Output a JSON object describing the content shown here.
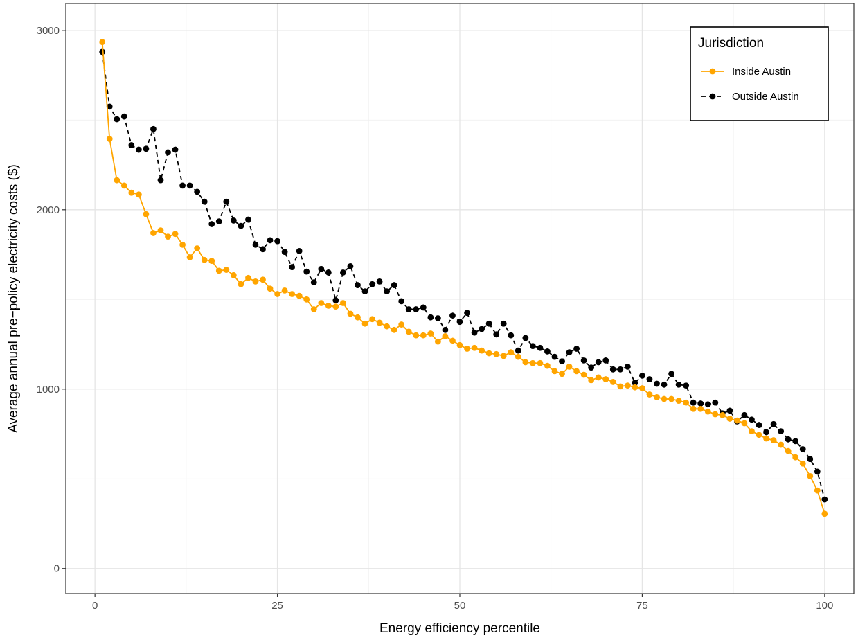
{
  "chart_data": {
    "type": "line",
    "title": "",
    "xlabel": "Energy efficiency percentile",
    "ylabel": "Average annual pre−policy electricity costs ($)",
    "xlim": [
      -4,
      104
    ],
    "ylim": [
      -140,
      3150
    ],
    "x_ticks": [
      0,
      25,
      50,
      75,
      100
    ],
    "x_tick_labels": [
      "0",
      "25",
      "50",
      "75",
      "100"
    ],
    "y_ticks": [
      0,
      1000,
      2000,
      3000
    ],
    "y_tick_labels": [
      "0",
      "1000",
      "2000",
      "3000"
    ],
    "grid": true,
    "legend": {
      "title": "Jurisdiction",
      "position": "top-right"
    },
    "x": [
      1,
      2,
      3,
      4,
      5,
      6,
      7,
      8,
      9,
      10,
      11,
      12,
      13,
      14,
      15,
      16,
      17,
      18,
      19,
      20,
      21,
      22,
      23,
      24,
      25,
      26,
      27,
      28,
      29,
      30,
      31,
      32,
      33,
      34,
      35,
      36,
      37,
      38,
      39,
      40,
      41,
      42,
      43,
      44,
      45,
      46,
      47,
      48,
      49,
      50,
      51,
      52,
      53,
      54,
      55,
      56,
      57,
      58,
      59,
      60,
      61,
      62,
      63,
      64,
      65,
      66,
      67,
      68,
      69,
      70,
      71,
      72,
      73,
      74,
      75,
      76,
      77,
      78,
      79,
      80,
      81,
      82,
      83,
      84,
      85,
      86,
      87,
      88,
      89,
      90,
      91,
      92,
      93,
      94,
      95,
      96,
      97,
      98,
      99,
      100
    ],
    "series": [
      {
        "name": "Inside Austin",
        "color": "#FFA500",
        "line_style": "solid",
        "values": [
          2935,
          2395,
          2165,
          2135,
          2095,
          2085,
          1975,
          1870,
          1885,
          1850,
          1865,
          1805,
          1735,
          1785,
          1720,
          1715,
          1660,
          1665,
          1635,
          1585,
          1620,
          1600,
          1610,
          1560,
          1530,
          1550,
          1530,
          1520,
          1500,
          1445,
          1480,
          1465,
          1460,
          1480,
          1420,
          1400,
          1365,
          1390,
          1370,
          1350,
          1330,
          1360,
          1320,
          1300,
          1300,
          1310,
          1265,
          1295,
          1270,
          1245,
          1225,
          1230,
          1215,
          1200,
          1195,
          1185,
          1205,
          1180,
          1150,
          1145,
          1145,
          1130,
          1100,
          1085,
          1125,
          1100,
          1080,
          1050,
          1065,
          1055,
          1040,
          1015,
          1020,
          1010,
          1005,
          970,
          955,
          945,
          945,
          935,
          925,
          890,
          890,
          875,
          860,
          855,
          835,
          825,
          810,
          765,
          745,
          725,
          715,
          690,
          655,
          620,
          585,
          515,
          435,
          305
        ]
      },
      {
        "name": "Outside Austin",
        "color": "#000000",
        "line_style": "dashed",
        "values": [
          2880,
          2575,
          2505,
          2520,
          2360,
          2335,
          2340,
          2450,
          2165,
          2320,
          2335,
          2135,
          2135,
          2100,
          2045,
          1920,
          1935,
          2045,
          1940,
          1910,
          1945,
          1805,
          1780,
          1830,
          1825,
          1765,
          1680,
          1770,
          1655,
          1595,
          1670,
          1650,
          1495,
          1650,
          1685,
          1580,
          1545,
          1585,
          1600,
          1545,
          1580,
          1490,
          1445,
          1445,
          1455,
          1400,
          1395,
          1330,
          1410,
          1375,
          1425,
          1315,
          1335,
          1365,
          1305,
          1365,
          1300,
          1215,
          1285,
          1240,
          1230,
          1210,
          1180,
          1155,
          1205,
          1225,
          1160,
          1120,
          1150,
          1160,
          1110,
          1110,
          1125,
          1035,
          1075,
          1055,
          1030,
          1025,
          1085,
          1025,
          1020,
          925,
          920,
          915,
          925,
          865,
          880,
          820,
          855,
          830,
          800,
          760,
          805,
          765,
          720,
          710,
          665,
          610,
          540,
          385
        ]
      }
    ]
  }
}
